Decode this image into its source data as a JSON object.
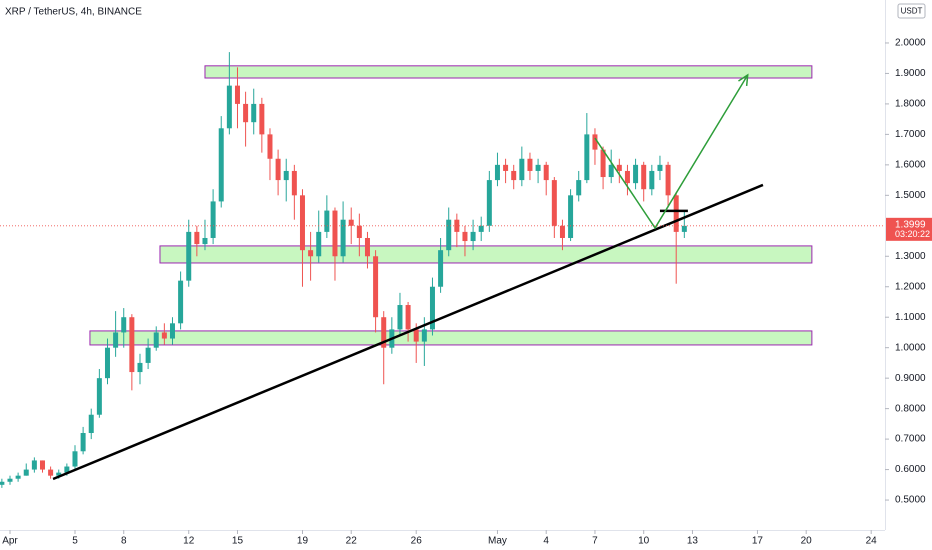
{
  "chart_data": {
    "type": "candlestick",
    "title": "XRP / TetherUS, 4h, BINANCE",
    "currency": "USDT",
    "x": [
      -0.5,
      0,
      0.5,
      1,
      1.5,
      2,
      2.5,
      3,
      3.5,
      4,
      4.5,
      5,
      5.5,
      6,
      6.5,
      7,
      7.5,
      8,
      8.5,
      9,
      9.5,
      10,
      10.5,
      11,
      11.5,
      12,
      12.5,
      13,
      13.5,
      14,
      14.5,
      15,
      15.5,
      16,
      16.5,
      17,
      17.5,
      18,
      18.5,
      19,
      19.5,
      20,
      20.5,
      21,
      21.5,
      22,
      22.5,
      23,
      23.5,
      24,
      24.5,
      25,
      25.5,
      26,
      26.5,
      27,
      27.5,
      28,
      28.5,
      29,
      29.5,
      30,
      30.5,
      31,
      31.5,
      32,
      32.5,
      33,
      33.5,
      34,
      34.5,
      35,
      35.5,
      36,
      36.5,
      37,
      37.5,
      38,
      38.5,
      39,
      39.5,
      40,
      40.5,
      41,
      41.5
    ],
    "series": [
      {
        "open": [
          0.55,
          0.56,
          0.57,
          0.58,
          0.6,
          0.63,
          0.6,
          0.58,
          0.59,
          0.61,
          0.66,
          0.72,
          0.78,
          0.9,
          1.0,
          1.05,
          1.1,
          0.92,
          0.95,
          1.0,
          1.05,
          1.03,
          1.08,
          1.22,
          1.38,
          1.34,
          1.36,
          1.48,
          1.72,
          1.86,
          1.8,
          1.74,
          1.8,
          1.7,
          1.62,
          1.55,
          1.58,
          1.5,
          1.32,
          1.3,
          1.38,
          1.45,
          1.3,
          1.42,
          1.4,
          1.36,
          1.3,
          1.1,
          1.0,
          1.06,
          1.14,
          1.06,
          1.02,
          1.06,
          1.2,
          1.32,
          1.42,
          1.38,
          1.35,
          1.38,
          1.4,
          1.55,
          1.6,
          1.58,
          1.55,
          1.62,
          1.58,
          1.6,
          1.55,
          1.4,
          1.36,
          1.5,
          1.55,
          1.7,
          1.65,
          1.56,
          1.6,
          1.58,
          1.54,
          1.6,
          1.52,
          1.58,
          1.6,
          1.5,
          1.38
        ],
        "high": [
          0.57,
          0.58,
          0.59,
          0.62,
          0.64,
          0.63,
          0.61,
          0.6,
          0.62,
          0.68,
          0.74,
          0.8,
          0.93,
          1.03,
          1.12,
          1.13,
          1.11,
          0.98,
          1.03,
          1.07,
          1.08,
          1.1,
          1.25,
          1.42,
          1.4,
          1.42,
          1.52,
          1.76,
          1.97,
          1.92,
          1.84,
          1.85,
          1.82,
          1.72,
          1.65,
          1.62,
          1.6,
          1.52,
          1.38,
          1.45,
          1.5,
          1.46,
          1.48,
          1.46,
          1.44,
          1.38,
          1.32,
          1.12,
          1.1,
          1.18,
          1.15,
          1.08,
          1.1,
          1.23,
          1.36,
          1.46,
          1.44,
          1.4,
          1.42,
          1.43,
          1.58,
          1.64,
          1.62,
          1.6,
          1.66,
          1.64,
          1.62,
          1.61,
          1.56,
          1.42,
          1.52,
          1.58,
          1.77,
          1.72,
          1.66,
          1.65,
          1.62,
          1.6,
          1.62,
          1.61,
          1.6,
          1.63,
          1.61,
          1.51,
          1.45
        ],
        "low": [
          0.54,
          0.55,
          0.56,
          0.58,
          0.59,
          0.59,
          0.57,
          0.57,
          0.58,
          0.6,
          0.65,
          0.7,
          0.77,
          0.88,
          0.97,
          1.0,
          0.86,
          0.88,
          0.93,
          0.99,
          1.01,
          1.01,
          1.06,
          1.2,
          1.3,
          1.32,
          1.34,
          1.46,
          1.7,
          1.72,
          1.66,
          1.7,
          1.64,
          1.55,
          1.5,
          1.48,
          1.42,
          1.2,
          1.22,
          1.28,
          1.36,
          1.22,
          1.28,
          1.34,
          1.3,
          1.26,
          1.05,
          0.88,
          0.98,
          1.04,
          1.02,
          0.95,
          0.94,
          1.04,
          1.18,
          1.3,
          1.33,
          1.3,
          1.32,
          1.35,
          1.38,
          1.53,
          1.54,
          1.52,
          1.53,
          1.55,
          1.54,
          1.5,
          1.36,
          1.32,
          1.35,
          1.48,
          1.54,
          1.6,
          1.52,
          1.54,
          1.54,
          1.5,
          1.52,
          1.48,
          1.5,
          1.55,
          1.46,
          1.21,
          1.36
        ],
        "close": [
          0.56,
          0.57,
          0.58,
          0.6,
          0.63,
          0.6,
          0.58,
          0.59,
          0.61,
          0.66,
          0.72,
          0.78,
          0.9,
          1.0,
          1.05,
          1.1,
          0.92,
          0.95,
          1.0,
          1.05,
          1.03,
          1.08,
          1.22,
          1.38,
          1.34,
          1.36,
          1.48,
          1.72,
          1.86,
          1.8,
          1.74,
          1.8,
          1.7,
          1.62,
          1.55,
          1.58,
          1.5,
          1.32,
          1.3,
          1.38,
          1.45,
          1.3,
          1.42,
          1.4,
          1.36,
          1.3,
          1.1,
          1.0,
          1.06,
          1.14,
          1.06,
          1.02,
          1.06,
          1.2,
          1.32,
          1.42,
          1.38,
          1.35,
          1.38,
          1.4,
          1.55,
          1.6,
          1.58,
          1.55,
          1.62,
          1.58,
          1.6,
          1.55,
          1.4,
          1.36,
          1.5,
          1.55,
          1.7,
          1.65,
          1.56,
          1.6,
          1.58,
          1.54,
          1.6,
          1.52,
          1.58,
          1.6,
          1.5,
          1.38,
          1.3999
        ]
      }
    ],
    "up_color": "#26a69a",
    "down_color": "#ef5350",
    "xlim": [
      -0.615,
      53.85
    ],
    "ylim": [
      0.4017,
      2.141
    ],
    "xticks": [
      {
        "value": 0,
        "label": "Apr"
      },
      {
        "value": 4,
        "label": "5"
      },
      {
        "value": 7,
        "label": "8"
      },
      {
        "value": 11,
        "label": "12"
      },
      {
        "value": 14,
        "label": "15"
      },
      {
        "value": 18,
        "label": "19"
      },
      {
        "value": 21,
        "label": "22"
      },
      {
        "value": 25,
        "label": "26"
      },
      {
        "value": 30,
        "label": "May"
      },
      {
        "value": 33,
        "label": "4"
      },
      {
        "value": 36,
        "label": "7"
      },
      {
        "value": 39,
        "label": "10"
      },
      {
        "value": 42,
        "label": "13"
      },
      {
        "value": 46,
        "label": "17"
      },
      {
        "value": 49,
        "label": "20"
      },
      {
        "value": 53,
        "label": "24"
      }
    ],
    "yticks": [
      {
        "value": 2.0,
        "label": "2.0000"
      },
      {
        "value": 1.9,
        "label": "1.9000"
      },
      {
        "value": 1.8,
        "label": "1.8000"
      },
      {
        "value": 1.7,
        "label": "1.7000"
      },
      {
        "value": 1.6,
        "label": "1.6000"
      },
      {
        "value": 1.5,
        "label": "1.5000"
      },
      {
        "value": 1.3,
        "label": "1.3000"
      },
      {
        "value": 1.2,
        "label": "1.2000"
      },
      {
        "value": 1.1,
        "label": "1.1000"
      },
      {
        "value": 1.0,
        "label": "1.0000"
      },
      {
        "value": 0.9,
        "label": "0.9000"
      },
      {
        "value": 0.8,
        "label": "0.8000"
      },
      {
        "value": 0.7,
        "label": "0.7000"
      },
      {
        "value": 0.6,
        "label": "0.6000"
      },
      {
        "value": 0.5,
        "label": "0.5000"
      }
    ],
    "grid": false,
    "last_price": {
      "value": 1.3999,
      "label": "1.3999"
    },
    "countdown": "03:20:22",
    "zones": [
      {
        "from": 12.0,
        "to": 49.35,
        "low": 1.885,
        "high": 1.925
      },
      {
        "from": 9.23,
        "to": 49.35,
        "low": 1.278,
        "high": 1.334
      },
      {
        "from": 4.92,
        "to": 49.35,
        "low": 1.009,
        "high": 1.055
      }
    ],
    "trendline": {
      "x": [
        2.65,
        46.34
      ],
      "y": [
        0.569,
        1.534
      ]
    },
    "level_line": {
      "x": [
        40.0,
        41.72
      ],
      "y": [
        1.449,
        1.449
      ]
    },
    "arrow": {
      "x": [
        36.0,
        39.7,
        45.4
      ],
      "y": [
        1.688,
        1.393,
        1.895
      ]
    }
  }
}
